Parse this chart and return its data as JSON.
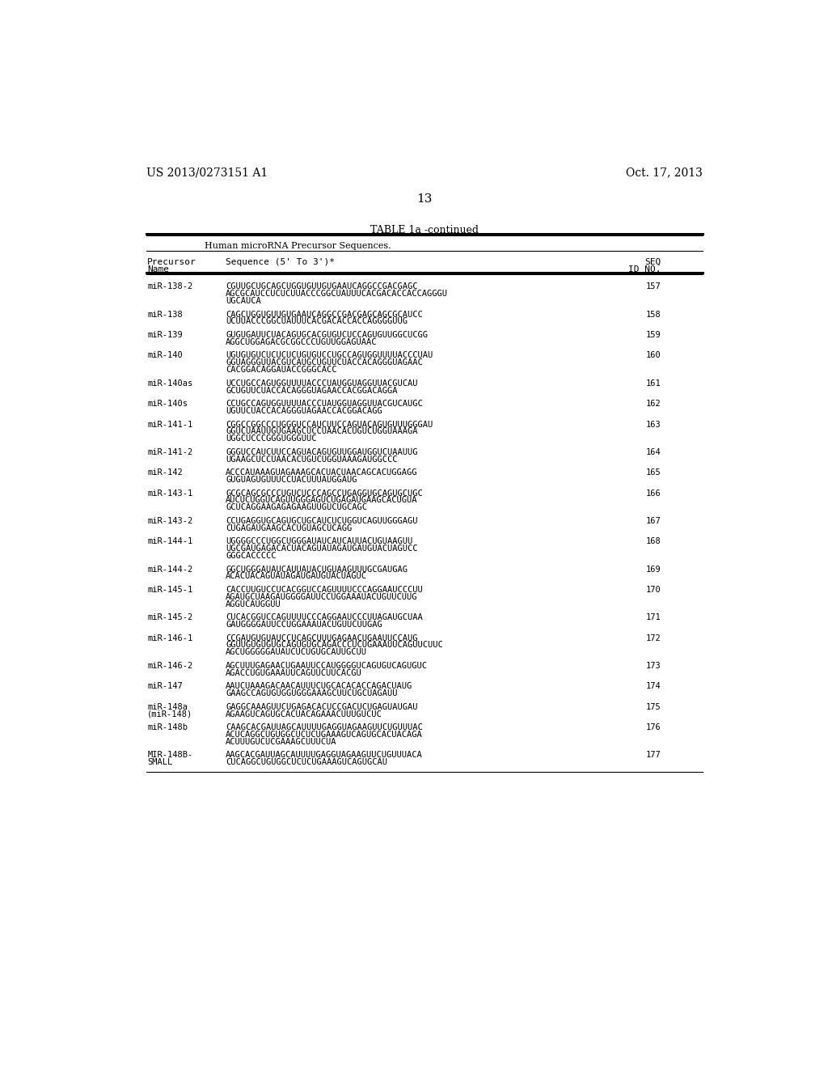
{
  "page_number": "13",
  "patent_number": "US 2013/0273151 A1",
  "patent_date": "Oct. 17, 2013",
  "table_title": "TABLE 1a -continued",
  "table_subtitle": "Human microRNA Precursor Sequences.",
  "rows": [
    {
      "name": "miR-138-2",
      "seq": [
        "CGUUGCUGCAGCUGGUGUUGUGAAUCAGGCCGACGAGC",
        "AGCGCAUCCUCUCUUACCCGGCUAUUUCACGACACCACCAGGGU",
        "UGCAUCA"
      ],
      "id": "157"
    },
    {
      "name": "miR-138",
      "seq": [
        "CAGCUGGUGUUGUGAAUCAGGCCGACGAGCAGCGCAUCC",
        "UCUUACCCGGCUAUUUCACGACACCACCAGGGGUUG"
      ],
      "id": "158"
    },
    {
      "name": "miR-139",
      "seq": [
        "GUGUGAUUCUACAGUGCACGUGUCUCCAGUGUUGGCUCGG",
        "AGGCUGGAGACGCGGCCCUGUUGGAGUAAC"
      ],
      "id": "159"
    },
    {
      "name": "miR-140",
      "seq": [
        "UGUGUGUCUCUCUCUGUGUCCUGCCAGUGGUUUUACCCUAU",
        "GGUAGGGUUACGUCAUGCUGUUCUACCACAGGGUAGAAC",
        "CACGGACAGGAUACCGGGCACC"
      ],
      "id": "160"
    },
    {
      "name": "miR-140as",
      "seq": [
        "UCCUGCCAGUGGUUUUACCCUAUGGUAGGUUACGUCAU",
        "GCUGUUCUACCACAGGGUAGAACCACGGACAGGA"
      ],
      "id": "161"
    },
    {
      "name": "miR-140s",
      "seq": [
        "CCUGCCAGUGGUUUUACCCUAUGGUAGGUUACGUCAUGC",
        "UGUUCUACCACAGGGUAGAACCACGGACAGG"
      ],
      "id": "162"
    },
    {
      "name": "miR-141-1",
      "seq": [
        "CGGCCGGCCCUGGGUCCAUCUUCCAGUACAGUGUUUGGGAU",
        "GGUCUAAUUGUGAAGCUCCUAACACUGUCUGGUAAAGA",
        "UGGCUCCCGGGUGGGUUC"
      ],
      "id": "163"
    },
    {
      "name": "miR-141-2",
      "seq": [
        "GGGUCCAUCUUCCAGUACAGUGUUGGAUGGUCUAAUUG",
        "UGAAGCUCCUAACACUGUCUGGUAAAGAUGGCCC"
      ],
      "id": "164"
    },
    {
      "name": "miR-142",
      "seq": [
        "ACCCAUAAAGUAGAAAGCACUACUAACAGCACUGGAGG",
        "GUGUAGUGUUUCCUACUUUAUGGAUG"
      ],
      "id": "165"
    },
    {
      "name": "miR-143-1",
      "seq": [
        "GCGCAGCGCCCUGUCUCCCAGCCUGAGGUGCAGUGCUGC",
        "AUCUCUGGUCAGUUGGGAGUCUGAGAUGAAGCACUGUA",
        "GCUCAGGAAGAGAGAAGUUGUCUGCAGC"
      ],
      "id": "166"
    },
    {
      "name": "miR-143-2",
      "seq": [
        "CCUGAGGUGCAGUGCUGCAUCUCUGGUCAGUUGGGAGU",
        "CUGAGAUGAAGCACUGUAGCUCAGG"
      ],
      "id": "167"
    },
    {
      "name": "miR-144-1",
      "seq": [
        "UGGGGCCCUGGCUGGGAUAUCAUCAUUACUGUAAGUU",
        "UGCGAUGAGACACUACAGUAUAGAUGAUGUACUAGUCC",
        "GGGCACCCCC"
      ],
      "id": "168"
    },
    {
      "name": "miR-144-2",
      "seq": [
        "GGCUGGGAUAUCAUUAUACUGUAAGUUUGCGAUGAG",
        "ACACUACAGUAUAGAUGAUGUACUAGUC"
      ],
      "id": "169"
    },
    {
      "name": "miR-145-1",
      "seq": [
        "CACCUUGUCCUCACGGUCCAGUUUUCCCAGGAAUCCCUU",
        "AGAUGCUAAGAUGGGGAUUCCUGGAAAUACUGUUCUUG",
        "AGGUCAUGGUU"
      ],
      "id": "170"
    },
    {
      "name": "miR-145-2",
      "seq": [
        "CUCACGGUCCAGUUUUCCCAGGAAUCCCUUAGAUGCUAA",
        "GAUGGGGAUUCCUGGAAAUACUGUUCUUGAG"
      ],
      "id": "171"
    },
    {
      "name": "miR-146-1",
      "seq": [
        "CCGAUGUGUAUCCUCAGCUUUGAGAACUGAAUUCCAUG",
        "GGUUGUGUGUGCAGUGUGCAGACCCUCUGAAAUUCAGUUCUUC",
        "AGCUGGGGGAUAUCUCUGUGCAUUGCUU"
      ],
      "id": "172"
    },
    {
      "name": "miR-146-2",
      "seq": [
        "AGCUUUGAGAACUGAAUUCCAUGGGGUCAGUGUCAGUGUC",
        "AGACCUGUGAAAUUCAGUUCUUCACGU"
      ],
      "id": "173"
    },
    {
      "name": "miR-147",
      "seq": [
        "AAUCUAAAGACAACAUUUCUGCACACACCAGACUAUG",
        "GAAGCCAGUGUGGUGGGAAAGCUUCUGCUAGAUU"
      ],
      "id": "174"
    },
    {
      "name": "miR-148a\n(miR-148)",
      "seq": [
        "GAGGCAAAGUUCUGAGACACUCCGACUCUGAGUAUGAU",
        "AGAAGUCAGUGCACUACAGAAACUUUGUCUC"
      ],
      "id": "175"
    },
    {
      "name": "miR-148b",
      "seq": [
        "CAAGCACGAUUAGCAUUUUGAGGUAGAAGUUCUGUUUAC",
        "ACUCAGGCUGUGGCUCUCUGAAAGUCAGUGCACUACAGA",
        "ACUUUGUCUCGAAAGCUUUCUA"
      ],
      "id": "176"
    },
    {
      "name": "MIR-148B-\nSMALL",
      "seq": [
        "AAGCACGAUUAGCAUUUUGAGGUAGAAGUUCUGUUUACA",
        "CUCAGGCUGUGGCUCUCUGAAAGUCAGUGCAU"
      ],
      "id": "177"
    }
  ]
}
